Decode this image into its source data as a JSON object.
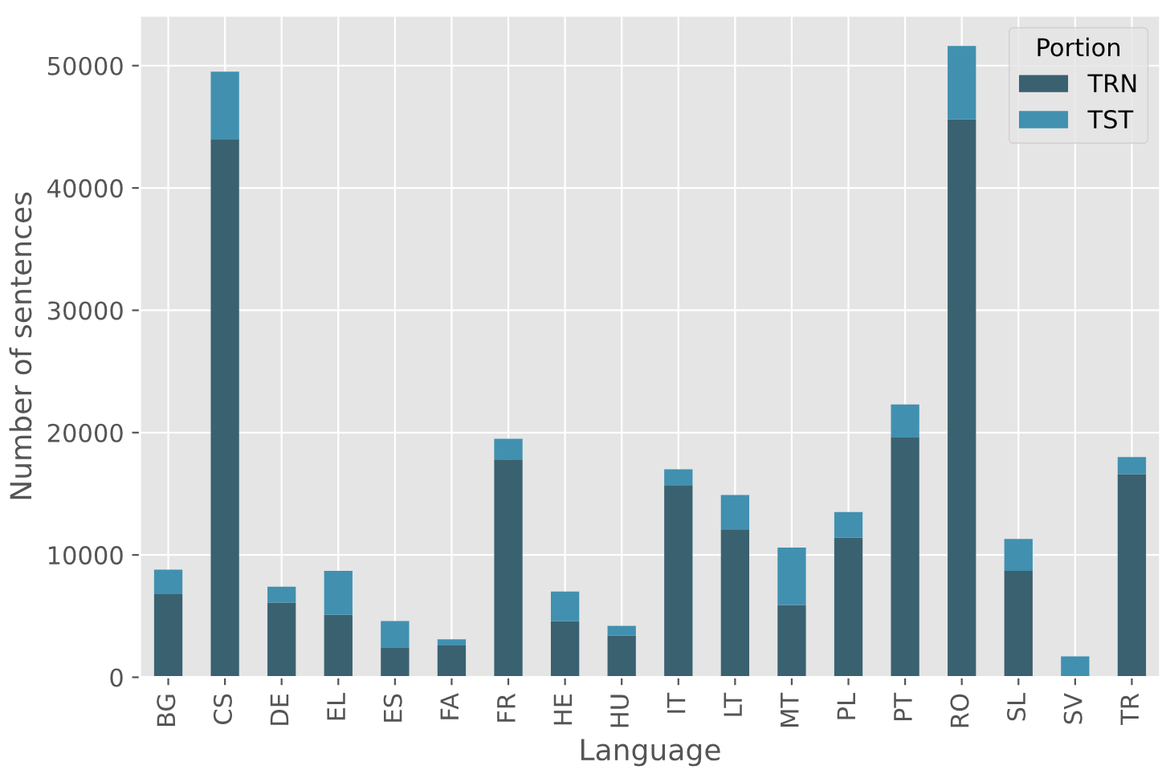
{
  "chart_data": {
    "type": "bar",
    "stacked": true,
    "xlabel": "Language",
    "ylabel": "Number of sentences",
    "legend_title": "Portion",
    "legend": "top right",
    "grid": true,
    "categories": [
      "BG",
      "CS",
      "DE",
      "EL",
      "ES",
      "FA",
      "FR",
      "HE",
      "HU",
      "IT",
      "LT",
      "MT",
      "PL",
      "PT",
      "RO",
      "SL",
      "SV",
      "TR"
    ],
    "series": [
      {
        "name": "TRN",
        "color": "#3a6170",
        "values": [
          6800,
          44000,
          6100,
          5100,
          2400,
          2600,
          17800,
          4600,
          3400,
          15700,
          12100,
          5900,
          11400,
          19600,
          45600,
          8700,
          0,
          16600
        ]
      },
      {
        "name": "TST",
        "color": "#4190b0",
        "values": [
          2000,
          5500,
          1300,
          3600,
          2200,
          500,
          1700,
          2400,
          800,
          1300,
          2800,
          4700,
          2100,
          2700,
          6000,
          2600,
          1700,
          1400
        ]
      }
    ],
    "ylim": [
      0,
      54100
    ],
    "yticks": [
      0,
      10000,
      20000,
      30000,
      40000,
      50000
    ]
  }
}
